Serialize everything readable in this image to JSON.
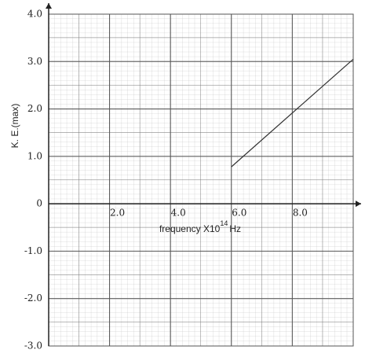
{
  "chart_data": {
    "type": "line",
    "ylabel": "K. E.(max)",
    "xlabel": "frequency X10",
    "xlabel_exponent": "14",
    "xlabel_unit": "Hz",
    "xlim": [
      0,
      10
    ],
    "ylim": [
      -3.0,
      4.0
    ],
    "xticks": [
      {
        "value": 2,
        "label": "2.0"
      },
      {
        "value": 4,
        "label": "4.0"
      },
      {
        "value": 6,
        "label": "6.0"
      },
      {
        "value": 8,
        "label": "8.0"
      }
    ],
    "yticks": [
      {
        "value": 4,
        "label": "4.0"
      },
      {
        "value": 3,
        "label": "3.0"
      },
      {
        "value": 2,
        "label": "2.0"
      },
      {
        "value": 1,
        "label": "1.0"
      },
      0,
      {
        "value": -1,
        "label": "-1.0"
      },
      {
        "value": -2,
        "label": "-2.0"
      },
      {
        "value": -3,
        "label": "-3.0"
      }
    ],
    "x": [
      6.0,
      10.0
    ],
    "values": [
      0.78,
      3.05
    ],
    "color": "#333333",
    "grid": true
  }
}
